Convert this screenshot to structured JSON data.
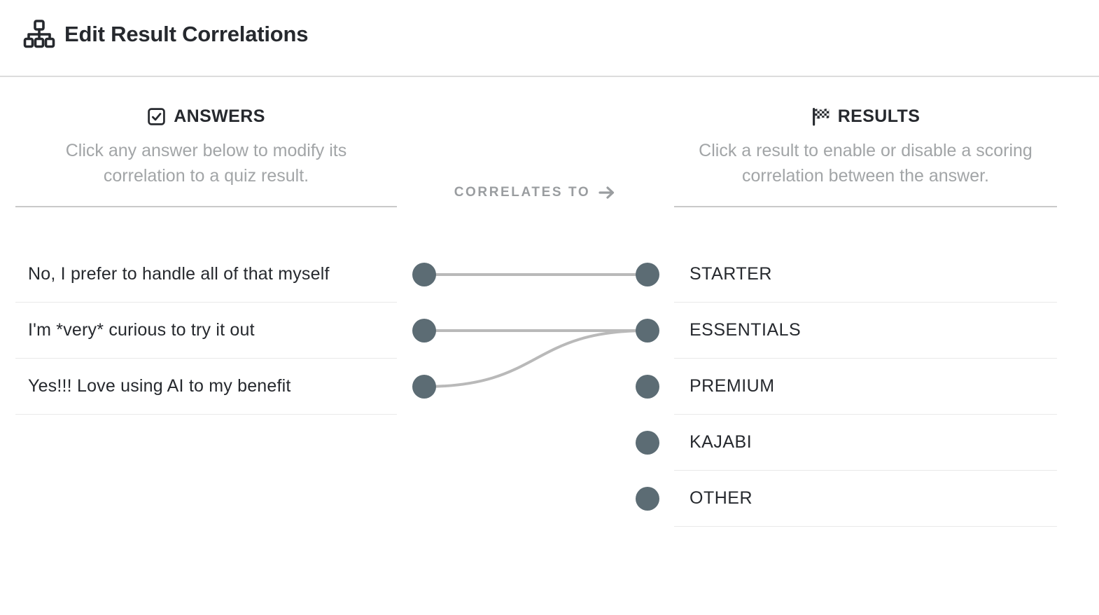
{
  "header": {
    "title": "Edit Result Correlations",
    "icon": "sitemap-icon"
  },
  "answers": {
    "heading": "ANSWERS",
    "icon": "checkbox-checked-icon",
    "description": "Click any answer below to modify its correlation to a quiz result.",
    "items": [
      {
        "label": "No, I prefer to handle all of that myself"
      },
      {
        "label": "I'm *very* curious to try it out"
      },
      {
        "label": "Yes!!! Love using AI to my benefit"
      }
    ]
  },
  "correlation": {
    "label": "CORRELATES TO",
    "arrow_icon": "right-arrow-icon"
  },
  "results": {
    "heading": "RESULTS",
    "icon": "checkered-flag-icon",
    "description": "Click a result to enable or disable a scoring correlation between the answer.",
    "items": [
      {
        "label": "STARTER"
      },
      {
        "label": "ESSENTIALS"
      },
      {
        "label": "PREMIUM"
      },
      {
        "label": "KAJABI"
      },
      {
        "label": "OTHER"
      }
    ]
  },
  "connections": [
    {
      "answer": 0,
      "result": 0
    },
    {
      "answer": 1,
      "result": 1
    },
    {
      "answer": 2,
      "result": 1
    }
  ],
  "colors": {
    "dot": "#5c6c74",
    "connection_line": "#b9b9b9",
    "dark_text": "#26292e",
    "muted_text": "#a2a5a7"
  }
}
